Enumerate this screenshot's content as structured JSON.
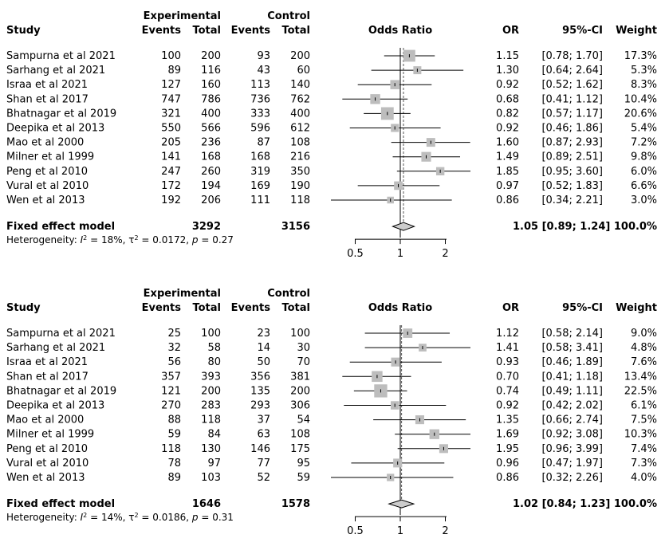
{
  "headers": {
    "experimental": "Experimental",
    "control": "Control",
    "study": "Study",
    "events": "Events",
    "total": "Total",
    "odds_ratio": "Odds Ratio",
    "or": "OR",
    "ci": "95%-CI",
    "weight": "Weight"
  },
  "chart_data": [
    {
      "type": "forest",
      "xscale": "log",
      "xticks": [
        0.5,
        1,
        2
      ],
      "xtick_labels": [
        "0.5",
        "1",
        "2"
      ],
      "reference_line": 1,
      "rows": [
        {
          "study": "Sampurna et al 2021",
          "e_events": "100",
          "e_total": "200",
          "c_events": "93",
          "c_total": "200",
          "or": 1.15,
          "lo": 0.78,
          "hi": 1.7,
          "weight": 17.3,
          "or_text": "1.15",
          "ci_text": "[0.78; 1.70]",
          "weight_text": "17.3%"
        },
        {
          "study": "Sarhang et al 2021",
          "e_events": "89",
          "e_total": "116",
          "c_events": "43",
          "c_total": "60",
          "or": 1.3,
          "lo": 0.64,
          "hi": 2.64,
          "weight": 5.3,
          "or_text": "1.30",
          "ci_text": "[0.64; 2.64]",
          "weight_text": "5.3%"
        },
        {
          "study": "Israa et al 2021",
          "e_events": "127",
          "e_total": "160",
          "c_events": "113",
          "c_total": "140",
          "or": 0.92,
          "lo": 0.52,
          "hi": 1.62,
          "weight": 8.3,
          "or_text": "0.92",
          "ci_text": "[0.52; 1.62]",
          "weight_text": "8.3%"
        },
        {
          "study": "Shan et al 2017",
          "e_events": "747",
          "e_total": "786",
          "c_events": "736",
          "c_total": "762",
          "or": 0.68,
          "lo": 0.41,
          "hi": 1.12,
          "weight": 10.4,
          "or_text": "0.68",
          "ci_text": "[0.41; 1.12]",
          "weight_text": "10.4%"
        },
        {
          "study": "Bhatnagar et al 2019",
          "e_events": "321",
          "e_total": "400",
          "c_events": "333",
          "c_total": "400",
          "or": 0.82,
          "lo": 0.57,
          "hi": 1.17,
          "weight": 20.6,
          "or_text": "0.82",
          "ci_text": "[0.57; 1.17]",
          "weight_text": "20.6%"
        },
        {
          "study": "Deepika et al 2013",
          "e_events": "550",
          "e_total": "566",
          "c_events": "596",
          "c_total": "612",
          "or": 0.92,
          "lo": 0.46,
          "hi": 1.86,
          "weight": 5.4,
          "or_text": "0.92",
          "ci_text": "[0.46; 1.86]",
          "weight_text": "5.4%"
        },
        {
          "study": "Mao et al 2000",
          "e_events": "205",
          "e_total": "236",
          "c_events": "87",
          "c_total": "108",
          "or": 1.6,
          "lo": 0.87,
          "hi": 2.93,
          "weight": 7.2,
          "or_text": "1.60",
          "ci_text": "[0.87; 2.93]",
          "weight_text": "7.2%"
        },
        {
          "study": "Milner et al 1999",
          "e_events": "141",
          "e_total": "168",
          "c_events": "168",
          "c_total": "216",
          "or": 1.49,
          "lo": 0.89,
          "hi": 2.51,
          "weight": 9.8,
          "or_text": "1.49",
          "ci_text": "[0.89; 2.51]",
          "weight_text": "9.8%"
        },
        {
          "study": "Peng et al 2010",
          "e_events": "247",
          "e_total": "260",
          "c_events": "319",
          "c_total": "350",
          "or": 1.85,
          "lo": 0.95,
          "hi": 3.6,
          "weight": 6.0,
          "or_text": "1.85",
          "ci_text": "[0.95; 3.60]",
          "weight_text": "6.0%"
        },
        {
          "study": "Vural et al 2010",
          "e_events": "172",
          "e_total": "194",
          "c_events": "169",
          "c_total": "190",
          "or": 0.97,
          "lo": 0.52,
          "hi": 1.83,
          "weight": 6.6,
          "or_text": "0.97",
          "ci_text": "[0.52; 1.83]",
          "weight_text": "6.6%"
        },
        {
          "study": "Wen et al 2013",
          "e_events": "192",
          "e_total": "206",
          "c_events": "111",
          "c_total": "118",
          "or": 0.86,
          "lo": 0.34,
          "hi": 2.21,
          "weight": 3.0,
          "or_text": "0.86",
          "ci_text": "[0.34; 2.21]",
          "weight_text": "3.0%"
        }
      ],
      "pooled": {
        "label": "Fixed effect model",
        "e_total": "3292",
        "c_total": "3156",
        "or": 1.05,
        "lo": 0.89,
        "hi": 1.24,
        "result_text": "1.05 [0.89; 1.24] 100.0%"
      },
      "heterogeneity": {
        "prefix": "Heterogeneity: ",
        "i2_sym": "I",
        "i2_sup": "2",
        "i2_val": " = 18%, ",
        "tau_sym": "τ",
        "tau_sup": "2",
        "tau_val": " = 0.0172, ",
        "p_sym": "p",
        "p_val": " = 0.27"
      }
    },
    {
      "type": "forest",
      "xscale": "log",
      "xticks": [
        0.5,
        1,
        2
      ],
      "xtick_labels": [
        "0.5",
        "1",
        "2"
      ],
      "reference_line": 1,
      "rows": [
        {
          "study": "Sampurna et al 2021",
          "e_events": "25",
          "e_total": "100",
          "c_events": "23",
          "c_total": "100",
          "or": 1.12,
          "lo": 0.58,
          "hi": 2.14,
          "weight": 9.0,
          "or_text": "1.12",
          "ci_text": "[0.58; 2.14]",
          "weight_text": "9.0%"
        },
        {
          "study": "Sarhang et al 2021",
          "e_events": "32",
          "e_total": "58",
          "c_events": "14",
          "c_total": "30",
          "or": 1.41,
          "lo": 0.58,
          "hi": 3.41,
          "weight": 4.8,
          "or_text": "1.41",
          "ci_text": "[0.58; 3.41]",
          "weight_text": "4.8%"
        },
        {
          "study": "Israa et al 2021",
          "e_events": "56",
          "e_total": "80",
          "c_events": "50",
          "c_total": "70",
          "or": 0.93,
          "lo": 0.46,
          "hi": 1.89,
          "weight": 7.6,
          "or_text": "0.93",
          "ci_text": "[0.46; 1.89]",
          "weight_text": "7.6%"
        },
        {
          "study": "Shan et al 2017",
          "e_events": "357",
          "e_total": "393",
          "c_events": "356",
          "c_total": "381",
          "or": 0.7,
          "lo": 0.41,
          "hi": 1.18,
          "weight": 13.4,
          "or_text": "0.70",
          "ci_text": "[0.41; 1.18]",
          "weight_text": "13.4%"
        },
        {
          "study": "Bhatnagar et al 2019",
          "e_events": "121",
          "e_total": "200",
          "c_events": "135",
          "c_total": "200",
          "or": 0.74,
          "lo": 0.49,
          "hi": 1.11,
          "weight": 22.5,
          "or_text": "0.74",
          "ci_text": "[0.49; 1.11]",
          "weight_text": "22.5%"
        },
        {
          "study": "Deepika et al 2013",
          "e_events": "270",
          "e_total": "283",
          "c_events": "293",
          "c_total": "306",
          "or": 0.92,
          "lo": 0.42,
          "hi": 2.02,
          "weight": 6.1,
          "or_text": "0.92",
          "ci_text": "[0.42; 2.02]",
          "weight_text": "6.1%"
        },
        {
          "study": "Mao et al 2000",
          "e_events": "88",
          "e_total": "118",
          "c_events": "37",
          "c_total": "54",
          "or": 1.35,
          "lo": 0.66,
          "hi": 2.74,
          "weight": 7.5,
          "or_text": "1.35",
          "ci_text": "[0.66; 2.74]",
          "weight_text": "7.5%"
        },
        {
          "study": "Milner et al 1999",
          "e_events": "59",
          "e_total": "84",
          "c_events": "63",
          "c_total": "108",
          "or": 1.69,
          "lo": 0.92,
          "hi": 3.08,
          "weight": 10.3,
          "or_text": "1.69",
          "ci_text": "[0.92; 3.08]",
          "weight_text": "10.3%"
        },
        {
          "study": "Peng et al 2010",
          "e_events": "118",
          "e_total": "130",
          "c_events": "146",
          "c_total": "175",
          "or": 1.95,
          "lo": 0.96,
          "hi": 3.99,
          "weight": 7.4,
          "or_text": "1.95",
          "ci_text": "[0.96; 3.99]",
          "weight_text": "7.4%"
        },
        {
          "study": "Vural et al 2010",
          "e_events": "78",
          "e_total": "97",
          "c_events": "77",
          "c_total": "95",
          "or": 0.96,
          "lo": 0.47,
          "hi": 1.97,
          "weight": 7.3,
          "or_text": "0.96",
          "ci_text": "[0.47; 1.97]",
          "weight_text": "7.3%"
        },
        {
          "study": "Wen et al 2013",
          "e_events": "89",
          "e_total": "103",
          "c_events": "52",
          "c_total": "59",
          "or": 0.86,
          "lo": 0.32,
          "hi": 2.26,
          "weight": 4.0,
          "or_text": "0.86",
          "ci_text": "[0.32; 2.26]",
          "weight_text": "4.0%"
        }
      ],
      "pooled": {
        "label": "Fixed effect model",
        "e_total": "1646",
        "c_total": "1578",
        "or": 1.02,
        "lo": 0.84,
        "hi": 1.23,
        "result_text": "1.02 [0.84; 1.23] 100.0%"
      },
      "heterogeneity": {
        "prefix": "Heterogeneity: ",
        "i2_sym": "I",
        "i2_sup": "2",
        "i2_val": " = 14%, ",
        "tau_sym": "τ",
        "tau_sup": "2",
        "tau_val": " = 0.0186, ",
        "p_sym": "p",
        "p_val": " = 0.31"
      }
    }
  ],
  "colors": {
    "square": "#bdbdbd",
    "line": "#000000",
    "diamond_fill": "#cccccc",
    "ref_line": "#555555"
  }
}
